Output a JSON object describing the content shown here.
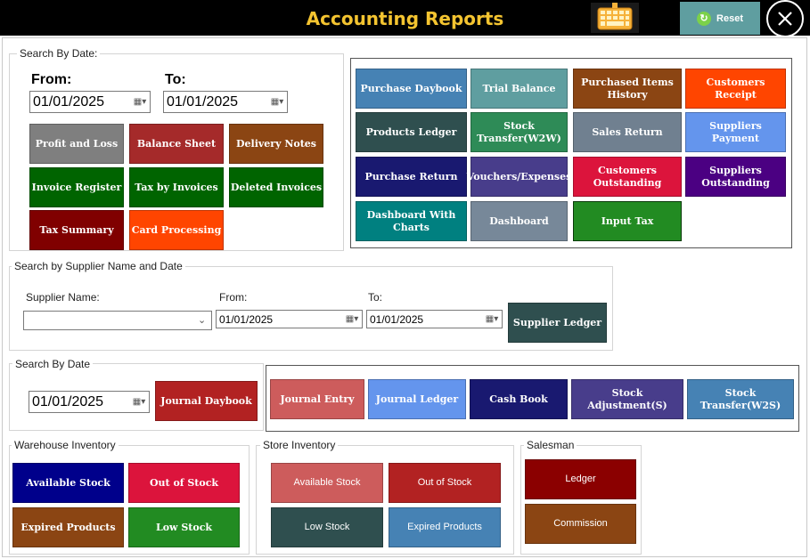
{
  "header": {
    "title": "Accounting Reports",
    "reset_label": "Reset"
  },
  "search_by_date": {
    "label": "Search By Date:",
    "from_label": "From:",
    "to_label": "To:",
    "from_value": "01/01/2025",
    "to_value": "01/01/2025",
    "buttons": {
      "profit_loss": "Profit and Loss",
      "balance_sheet": "Balance Sheet",
      "delivery_notes": "Delivery Notes",
      "invoice_register": "Invoice Register",
      "tax_by_invoices": "Tax by Invoices",
      "deleted_invoices": "Deleted Invoices",
      "tax_summary": "Tax Summary",
      "card_processing": "Card Processing"
    }
  },
  "reports_grid": {
    "purchase_daybook": "Purchase Daybook",
    "trial_balance": "Trial Balance",
    "purchased_items_history": "Purchased Items History",
    "customers_receipt": "Customers Receipt",
    "products_ledger": "Products Ledger",
    "stock_transfer_w2w": "Stock Transfer(W2W)",
    "sales_return": "Sales Return",
    "suppliers_payment": "Suppliers Payment",
    "purchase_return": "Purchase Return",
    "vouchers_expenses": "Vouchers/Expenses",
    "customers_outstanding": "Customers Outstanding",
    "suppliers_outstanding": "Suppliers Outstanding",
    "dashboard_with_charts": "Dashboard With Charts",
    "dashboard": "Dashboard",
    "input_tax": "Input Tax"
  },
  "supplier_search": {
    "label": "Search by Supplier Name and Date",
    "supplier_name_label": "Supplier Name:",
    "from_label": "From:",
    "to_label": "To:",
    "supplier_value": "",
    "from_value": "01/01/2025",
    "to_value": "01/01/2025",
    "ledger_button": "Supplier Ledger"
  },
  "journal_search": {
    "label": "Search By Date",
    "date_value": "01/01/2025",
    "journal_daybook": "Journal Daybook",
    "journal_entry": "Journal Entry",
    "journal_ledger": "Journal Ledger",
    "cash_book": "Cash Book",
    "stock_adjustment": "Stock Adjustment(S)",
    "stock_transfer_w2s": "Stock Transfer(W2S)"
  },
  "warehouse_inventory": {
    "label": "Warehouse Inventory",
    "available_stock": "Available Stock",
    "out_of_stock": "Out of Stock",
    "expired_products": "Expired Products",
    "low_stock": "Low Stock"
  },
  "store_inventory": {
    "label": "Store Inventory",
    "available_stock": "Available Stock",
    "out_of_stock": "Out of Stock",
    "low_stock": "Low Stock",
    "expired_products": "Expired Products"
  },
  "salesman": {
    "label": "Salesman",
    "ledger": "Ledger",
    "commission": "Commission"
  }
}
